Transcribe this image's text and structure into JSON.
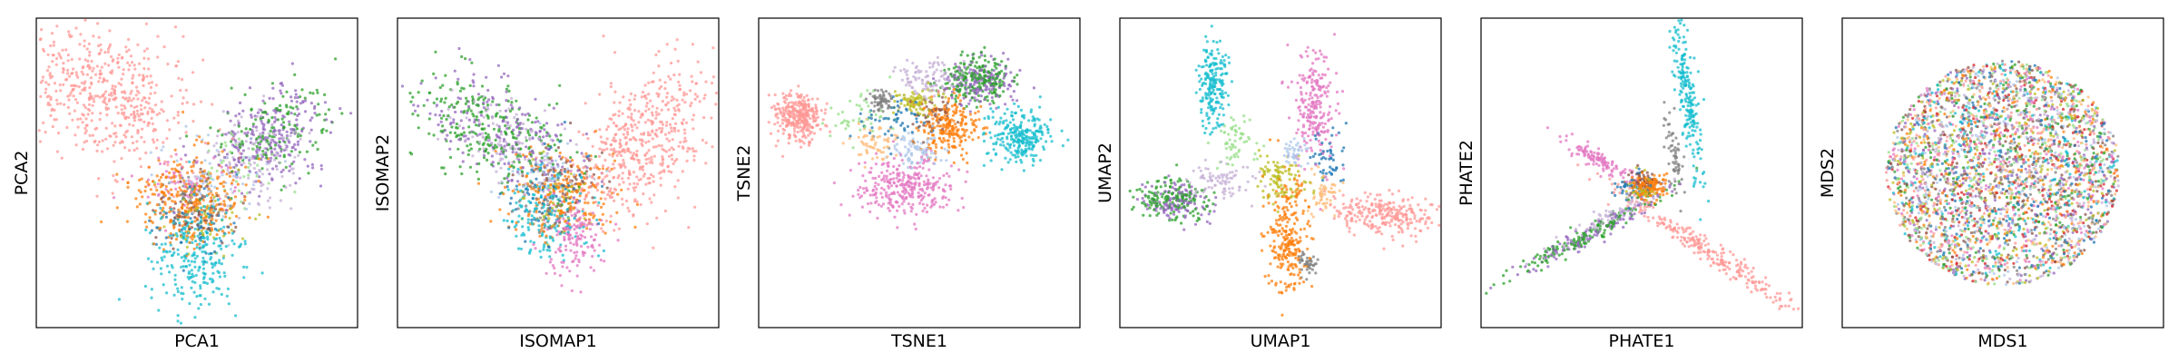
{
  "figure": {
    "point_alpha": 0.75
  },
  "chart_data": [
    {
      "type": "scatter",
      "xlabel": "PCA1",
      "ylabel": "PCA2",
      "ticks": "hidden",
      "grid": false,
      "clusters": [
        {
          "color": "#ff9896",
          "center": [
            -0.6,
            0.55
          ],
          "spread": [
            0.3,
            0.22
          ],
          "count": 520,
          "rotation": -35
        },
        {
          "color": "#ff7f0e",
          "center": [
            -0.05,
            -0.2
          ],
          "spread": [
            0.18,
            0.16
          ],
          "count": 320,
          "rotation": 0
        },
        {
          "color": "#17becf",
          "center": [
            0.0,
            -0.55
          ],
          "spread": [
            0.15,
            0.2
          ],
          "count": 260,
          "rotation": 0
        },
        {
          "color": "#9467bd",
          "center": [
            0.5,
            0.25
          ],
          "spread": [
            0.2,
            0.15
          ],
          "count": 240,
          "rotation": 30
        },
        {
          "color": "#2ca02c",
          "center": [
            0.55,
            0.3
          ],
          "spread": [
            0.22,
            0.16
          ],
          "count": 140,
          "rotation": 30
        },
        {
          "color": "#c5b0d5",
          "center": [
            0.4,
            0.1
          ],
          "spread": [
            0.18,
            0.15
          ],
          "count": 120,
          "rotation": 20
        },
        {
          "color": "#8c564b",
          "center": [
            0.0,
            -0.25
          ],
          "spread": [
            0.12,
            0.12
          ],
          "count": 80,
          "rotation": 0
        },
        {
          "color": "#e377c2",
          "center": [
            -0.1,
            -0.05
          ],
          "spread": [
            0.15,
            0.12
          ],
          "count": 70,
          "rotation": 0
        },
        {
          "color": "#aec7e8",
          "center": [
            0.1,
            0.0
          ],
          "spread": [
            0.18,
            0.15
          ],
          "count": 60,
          "rotation": 0
        },
        {
          "color": "#bcbd22",
          "center": [
            0.05,
            -0.3
          ],
          "spread": [
            0.12,
            0.12
          ],
          "count": 50,
          "rotation": 0
        },
        {
          "color": "#1f77b4",
          "center": [
            0.0,
            -0.4
          ],
          "spread": [
            0.14,
            0.14
          ],
          "count": 50,
          "rotation": 0
        },
        {
          "color": "#7f7f7f",
          "center": [
            -0.05,
            -0.15
          ],
          "spread": [
            0.1,
            0.1
          ],
          "count": 40,
          "rotation": 0
        },
        {
          "color": "#98df8a",
          "center": [
            0.3,
            0.05
          ],
          "spread": [
            0.15,
            0.12
          ],
          "count": 40,
          "rotation": 0
        }
      ]
    },
    {
      "type": "scatter",
      "xlabel": "ISOMAP1",
      "ylabel": "ISOMAP2",
      "ticks": "hidden",
      "grid": false,
      "clusters": [
        {
          "color": "#ff9896",
          "center": [
            0.55,
            0.2
          ],
          "spread": [
            0.3,
            0.18
          ],
          "count": 500,
          "rotation": 50
        },
        {
          "color": "#2ca02c",
          "center": [
            -0.45,
            0.3
          ],
          "spread": [
            0.3,
            0.14
          ],
          "count": 260,
          "rotation": -30
        },
        {
          "color": "#9467bd",
          "center": [
            -0.4,
            0.3
          ],
          "spread": [
            0.3,
            0.14
          ],
          "count": 200,
          "rotation": -30
        },
        {
          "color": "#c5b0d5",
          "center": [
            -0.3,
            0.2
          ],
          "spread": [
            0.25,
            0.12
          ],
          "count": 120,
          "rotation": -30
        },
        {
          "color": "#ff7f0e",
          "center": [
            0.05,
            -0.15
          ],
          "spread": [
            0.18,
            0.16
          ],
          "count": 220,
          "rotation": 0
        },
        {
          "color": "#17becf",
          "center": [
            -0.1,
            -0.3
          ],
          "spread": [
            0.15,
            0.14
          ],
          "count": 160,
          "rotation": 0
        },
        {
          "color": "#e377c2",
          "center": [
            0.1,
            -0.45
          ],
          "spread": [
            0.1,
            0.14
          ],
          "count": 150,
          "rotation": 0
        },
        {
          "color": "#1f77b4",
          "center": [
            -0.05,
            -0.1
          ],
          "spread": [
            0.15,
            0.14
          ],
          "count": 70,
          "rotation": 0
        },
        {
          "color": "#8c564b",
          "center": [
            0.05,
            -0.05
          ],
          "spread": [
            0.12,
            0.12
          ],
          "count": 60,
          "rotation": 0
        },
        {
          "color": "#bcbd22",
          "center": [
            0.0,
            -0.2
          ],
          "spread": [
            0.12,
            0.12
          ],
          "count": 50,
          "rotation": 0
        },
        {
          "color": "#aec7e8",
          "center": [
            -0.1,
            0.0
          ],
          "spread": [
            0.15,
            0.12
          ],
          "count": 50,
          "rotation": 0
        },
        {
          "color": "#7f7f7f",
          "center": [
            -0.05,
            -0.25
          ],
          "spread": [
            0.1,
            0.1
          ],
          "count": 40,
          "rotation": 0
        }
      ]
    },
    {
      "type": "scatter",
      "xlabel": "TSNE1",
      "ylabel": "TSNE2",
      "ticks": "hidden",
      "grid": false,
      "clusters": [
        {
          "color": "#ff9896",
          "center": [
            -0.8,
            0.4
          ],
          "spread": [
            0.08,
            0.08
          ],
          "count": 320,
          "rotation": 0
        },
        {
          "color": "#17becf",
          "center": [
            0.68,
            0.25
          ],
          "spread": [
            0.1,
            0.09
          ],
          "count": 260,
          "rotation": 0
        },
        {
          "color": "#e377c2",
          "center": [
            -0.1,
            -0.1
          ],
          "spread": [
            0.16,
            0.1
          ],
          "count": 300,
          "rotation": 0
        },
        {
          "color": "#2ca02c",
          "center": [
            0.38,
            0.65
          ],
          "spread": [
            0.12,
            0.08
          ],
          "count": 220,
          "rotation": 0
        },
        {
          "color": "#9467bd",
          "center": [
            0.4,
            0.62
          ],
          "spread": [
            0.12,
            0.08
          ],
          "count": 160,
          "rotation": 0
        },
        {
          "color": "#ff7f0e",
          "center": [
            0.2,
            0.32
          ],
          "spread": [
            0.1,
            0.1
          ],
          "count": 240,
          "rotation": 0
        },
        {
          "color": "#7f7f7f",
          "center": [
            -0.25,
            0.5
          ],
          "spread": [
            0.04,
            0.04
          ],
          "count": 60,
          "rotation": 0
        },
        {
          "color": "#bcbd22",
          "center": [
            -0.02,
            0.5
          ],
          "spread": [
            0.07,
            0.05
          ],
          "count": 80,
          "rotation": 0
        },
        {
          "color": "#c5b0d5",
          "center": [
            0.05,
            0.65
          ],
          "spread": [
            0.1,
            0.06
          ],
          "count": 100,
          "rotation": 0
        },
        {
          "color": "#aec7e8",
          "center": [
            0.0,
            0.15
          ],
          "spread": [
            0.08,
            0.06
          ],
          "count": 80,
          "rotation": 0
        },
        {
          "color": "#ffbb78",
          "center": [
            -0.3,
            0.2
          ],
          "spread": [
            0.08,
            0.06
          ],
          "count": 60,
          "rotation": 0
        },
        {
          "color": "#1f77b4",
          "center": [
            -0.15,
            0.35
          ],
          "spread": [
            0.12,
            0.08
          ],
          "count": 60,
          "rotation": 0
        },
        {
          "color": "#8c564b",
          "center": [
            0.1,
            0.4
          ],
          "spread": [
            0.1,
            0.08
          ],
          "count": 50,
          "rotation": 0
        },
        {
          "color": "#98df8a",
          "center": [
            -0.4,
            0.4
          ],
          "spread": [
            0.1,
            0.08
          ],
          "count": 50,
          "rotation": 0
        }
      ]
    },
    {
      "type": "scatter",
      "xlabel": "UMAP1",
      "ylabel": "UMAP2",
      "ticks": "hidden",
      "grid": false,
      "clusters": [
        {
          "color": "#17becf",
          "center": [
            -0.45,
            0.6
          ],
          "spread": [
            0.05,
            0.16
          ],
          "count": 200,
          "rotation": 0
        },
        {
          "color": "#e377c2",
          "center": [
            0.22,
            0.45
          ],
          "spread": [
            0.07,
            0.2
          ],
          "count": 230,
          "rotation": 0
        },
        {
          "color": "#2ca02c",
          "center": [
            -0.72,
            -0.18
          ],
          "spread": [
            0.12,
            0.07
          ],
          "count": 160,
          "rotation": 0
        },
        {
          "color": "#9467bd",
          "center": [
            -0.7,
            -0.2
          ],
          "spread": [
            0.12,
            0.07
          ],
          "count": 120,
          "rotation": 0
        },
        {
          "color": "#c5b0d5",
          "center": [
            -0.4,
            -0.05
          ],
          "spread": [
            0.1,
            0.06
          ],
          "count": 80,
          "rotation": 0
        },
        {
          "color": "#ff9896",
          "center": [
            0.72,
            -0.3
          ],
          "spread": [
            0.18,
            0.07
          ],
          "count": 260,
          "rotation": -5
        },
        {
          "color": "#ff7f0e",
          "center": [
            0.05,
            -0.45
          ],
          "spread": [
            0.07,
            0.2
          ],
          "count": 260,
          "rotation": 0
        },
        {
          "color": "#7f7f7f",
          "center": [
            0.18,
            -0.62
          ],
          "spread": [
            0.04,
            0.04
          ],
          "count": 40,
          "rotation": 0
        },
        {
          "color": "#bcbd22",
          "center": [
            -0.02,
            -0.05
          ],
          "spread": [
            0.08,
            0.08
          ],
          "count": 100,
          "rotation": 0
        },
        {
          "color": "#98df8a",
          "center": [
            -0.3,
            0.2
          ],
          "spread": [
            0.06,
            0.1
          ],
          "count": 60,
          "rotation": 0
        },
        {
          "color": "#aec7e8",
          "center": [
            0.1,
            0.15
          ],
          "spread": [
            0.05,
            0.05
          ],
          "count": 40,
          "rotation": 0
        },
        {
          "color": "#1f77b4",
          "center": [
            0.3,
            0.1
          ],
          "spread": [
            0.06,
            0.1
          ],
          "count": 50,
          "rotation": 0
        },
        {
          "color": "#ffbb78",
          "center": [
            0.3,
            -0.15
          ],
          "spread": [
            0.05,
            0.08
          ],
          "count": 50,
          "rotation": 0
        }
      ]
    },
    {
      "type": "scatter",
      "xlabel": "PHATE1",
      "ylabel": "PHATE2",
      "ticks": "hidden",
      "grid": false,
      "clusters": [
        {
          "color": "#17becf",
          "center": [
            0.3,
            0.55
          ],
          "spread": [
            0.03,
            0.3
          ],
          "count": 220,
          "rotation": 8
        },
        {
          "color": "#ff9896",
          "center": [
            0.45,
            -0.55
          ],
          "spread": [
            0.38,
            0.035
          ],
          "count": 260,
          "rotation": -35
        },
        {
          "color": "#2ca02c",
          "center": [
            -0.4,
            -0.45
          ],
          "spread": [
            0.35,
            0.03
          ],
          "count": 160,
          "rotation": 30
        },
        {
          "color": "#9467bd",
          "center": [
            -0.3,
            -0.4
          ],
          "spread": [
            0.3,
            0.03
          ],
          "count": 120,
          "rotation": 30
        },
        {
          "color": "#c5b0d5",
          "center": [
            -0.2,
            -0.3
          ],
          "spread": [
            0.25,
            0.03
          ],
          "count": 80,
          "rotation": 30
        },
        {
          "color": "#e377c2",
          "center": [
            -0.3,
            0.1
          ],
          "spread": [
            0.14,
            0.03
          ],
          "count": 120,
          "rotation": -30
        },
        {
          "color": "#ff7f0e",
          "center": [
            0.05,
            -0.1
          ],
          "spread": [
            0.05,
            0.04
          ],
          "count": 160,
          "rotation": 0
        },
        {
          "color": "#7f7f7f",
          "center": [
            0.22,
            0.15
          ],
          "spread": [
            0.03,
            0.15
          ],
          "count": 60,
          "rotation": 8
        },
        {
          "color": "#8c564b",
          "center": [
            0.0,
            -0.05
          ],
          "spread": [
            0.04,
            0.04
          ],
          "count": 50,
          "rotation": 0
        },
        {
          "color": "#bcbd22",
          "center": [
            0.0,
            -0.12
          ],
          "spread": [
            0.05,
            0.04
          ],
          "count": 40,
          "rotation": 0
        },
        {
          "color": "#1f77b4",
          "center": [
            -0.05,
            -0.1
          ],
          "spread": [
            0.06,
            0.05
          ],
          "count": 40,
          "rotation": 0
        }
      ]
    },
    {
      "type": "scatter",
      "xlabel": "MDS1",
      "ylabel": "MDS2",
      "ticks": "hidden",
      "grid": false,
      "shape": "disk",
      "radius": 0.78,
      "colors": [
        "#ff9896",
        "#ff7f0e",
        "#2ca02c",
        "#9467bd",
        "#17becf",
        "#e377c2",
        "#1f77b4",
        "#8c564b",
        "#7f7f7f",
        "#bcbd22",
        "#c5b0d5",
        "#aec7e8",
        "#ffbb78",
        "#98df8a",
        "#d62728"
      ],
      "count": 3400
    }
  ]
}
